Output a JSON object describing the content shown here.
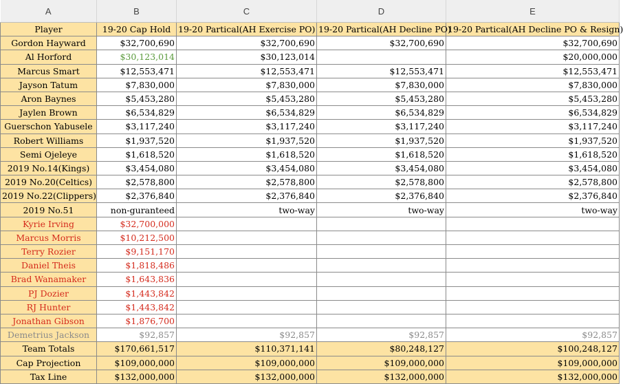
{
  "column_letters": [
    "A",
    "B",
    "C",
    "D",
    "E"
  ],
  "colors": {
    "header_fill": "#fde3a3",
    "red_text": "#d42a1c",
    "green_text": "#5a9a3c",
    "grey_text": "#8a8a8a"
  },
  "header": [
    "Player",
    "19-20 Cap Hold",
    "19-20 Partical(AH  Exercise PO)",
    "19-20 Partical(AH Decline PO)",
    "19-20 Partical(AH Decline PO & Resign)"
  ],
  "rows": [
    {
      "style": "normal",
      "cells": [
        "Gordon Hayward",
        "$32,700,690",
        "$32,700,690",
        "$32,700,690",
        "$32,700,690"
      ]
    },
    {
      "style": "normal",
      "green_b": true,
      "cells": [
        "Al Horford",
        "$30,123,014",
        "$30,123,014",
        "",
        "$20,000,000"
      ]
    },
    {
      "style": "normal",
      "cells": [
        "Marcus Smart",
        "$12,553,471",
        "$12,553,471",
        "$12,553,471",
        "$12,553,471"
      ]
    },
    {
      "style": "normal",
      "cells": [
        "Jayson Tatum",
        "$7,830,000",
        "$7,830,000",
        "$7,830,000",
        "$7,830,000"
      ]
    },
    {
      "style": "normal",
      "cells": [
        "Aron Baynes",
        "$5,453,280",
        "$5,453,280",
        "$5,453,280",
        "$5,453,280"
      ]
    },
    {
      "style": "normal",
      "cells": [
        "Jaylen Brown",
        "$6,534,829",
        "$6,534,829",
        "$6,534,829",
        "$6,534,829"
      ]
    },
    {
      "style": "normal",
      "cells": [
        "Guerschon Yabusele",
        "$3,117,240",
        "$3,117,240",
        "$3,117,240",
        "$3,117,240"
      ]
    },
    {
      "style": "normal",
      "cells": [
        "Robert Williams",
        "$1,937,520",
        "$1,937,520",
        "$1,937,520",
        "$1,937,520"
      ]
    },
    {
      "style": "normal",
      "cells": [
        "Semi Ojeleye",
        "$1,618,520",
        "$1,618,520",
        "$1,618,520",
        "$1,618,520"
      ]
    },
    {
      "style": "normal",
      "cells": [
        "2019 No.14(Kings)",
        "$3,454,080",
        "$3,454,080",
        "$3,454,080",
        "$3,454,080"
      ]
    },
    {
      "style": "normal",
      "cells": [
        "2019 No.20(Celtics)",
        "$2,578,800",
        "$2,578,800",
        "$2,578,800",
        "$2,578,800"
      ]
    },
    {
      "style": "normal",
      "cells": [
        "2019 No.22(Clippers)",
        "$2,376,840",
        "$2,376,840",
        "$2,376,840",
        "$2,376,840"
      ]
    },
    {
      "style": "normal",
      "cells": [
        "2019 No.51",
        "non-guranteed",
        "two-way",
        "two-way",
        "two-way"
      ]
    },
    {
      "style": "red",
      "cells": [
        "Kyrie Irving",
        "$32,700,000",
        "",
        "",
        ""
      ]
    },
    {
      "style": "red",
      "cells": [
        "Marcus Morris",
        "$10,212,500",
        "",
        "",
        ""
      ]
    },
    {
      "style": "red",
      "cells": [
        "Terry Rozier",
        "$9,151,170",
        "",
        "",
        ""
      ]
    },
    {
      "style": "red",
      "cells": [
        "Daniel Theis",
        "$1,818,486",
        "",
        "",
        ""
      ]
    },
    {
      "style": "red",
      "cells": [
        "Brad Wanamaker",
        "$1,643,836",
        "",
        "",
        ""
      ]
    },
    {
      "style": "red",
      "cells": [
        "PJ Dozier",
        "$1,443,842",
        "",
        "",
        ""
      ]
    },
    {
      "style": "red",
      "cells": [
        "RJ Hunter",
        "$1,443,842",
        "",
        "",
        ""
      ]
    },
    {
      "style": "red",
      "cells": [
        "Jonathan Gibson",
        "$1,876,700",
        "",
        "",
        ""
      ]
    },
    {
      "style": "grey",
      "cells": [
        "Demetrius Jackson",
        "$92,857",
        "$92,857",
        "$92,857",
        "$92,857"
      ]
    },
    {
      "style": "total",
      "cells": [
        "Team Totals",
        "$170,661,517",
        "$110,371,141",
        "$80,248,127",
        "$100,248,127"
      ]
    },
    {
      "style": "total",
      "cells": [
        "Cap Projection",
        "$109,000,000",
        "$109,000,000",
        "$109,000,000",
        "$109,000,000"
      ]
    },
    {
      "style": "total",
      "cells": [
        "Tax Line",
        "$132,000,000",
        "$132,000,000",
        "$132,000,000",
        "$132,000,000"
      ]
    }
  ]
}
